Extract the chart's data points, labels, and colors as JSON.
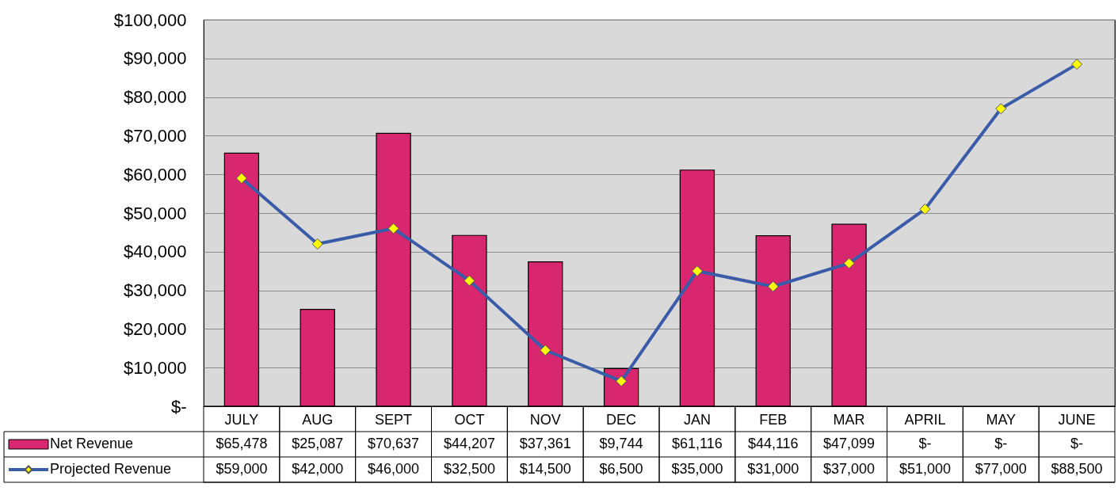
{
  "chart_data": {
    "type": "bar",
    "categories": [
      "JULY",
      "AUG",
      "SEPT",
      "OCT",
      "NOV",
      "DEC",
      "JAN",
      "FEB",
      "MAR",
      "APRIL",
      "MAY",
      "JUNE"
    ],
    "series": [
      {
        "name": "Net Revenue",
        "color": "#d8266f",
        "values": [
          65478,
          25087,
          70637,
          44207,
          37361,
          9744,
          61116,
          44116,
          47099,
          null,
          null,
          null
        ],
        "value_labels": [
          "$65,478",
          "$25,087",
          "$70,637",
          "$44,207",
          "$37,361",
          "$9,744",
          "$61,116",
          "$44,116",
          "$47,099",
          "$-",
          "$-",
          "$-"
        ]
      },
      {
        "name": "Projected Revenue",
        "type": "line",
        "color": "#3a5ba8",
        "marker": "diamond",
        "values": [
          59000,
          42000,
          46000,
          32500,
          14500,
          6500,
          35000,
          31000,
          37000,
          51000,
          77000,
          88500
        ],
        "value_labels": [
          "$59,000",
          "$42,000",
          "$46,000",
          "$32,500",
          "$14,500",
          "$6,500",
          "$35,000",
          "$31,000",
          "$37,000",
          "$51,000",
          "$77,000",
          "$88,500"
        ]
      }
    ],
    "ylim": [
      0,
      100000
    ],
    "yticks": [
      {
        "value": 0,
        "label": "$-"
      },
      {
        "value": 10000,
        "label": "$10,000"
      },
      {
        "value": 20000,
        "label": "$20,000"
      },
      {
        "value": 30000,
        "label": "$30,000"
      },
      {
        "value": 40000,
        "label": "$40,000"
      },
      {
        "value": 50000,
        "label": "$50,000"
      },
      {
        "value": 60000,
        "label": "$60,000"
      },
      {
        "value": 70000,
        "label": "$70,000"
      },
      {
        "value": 80000,
        "label": "$80,000"
      },
      {
        "value": 90000,
        "label": "$90,000"
      },
      {
        "value": 100000,
        "label": "$100,000"
      }
    ],
    "grid": "y",
    "legend": "bottom left"
  }
}
